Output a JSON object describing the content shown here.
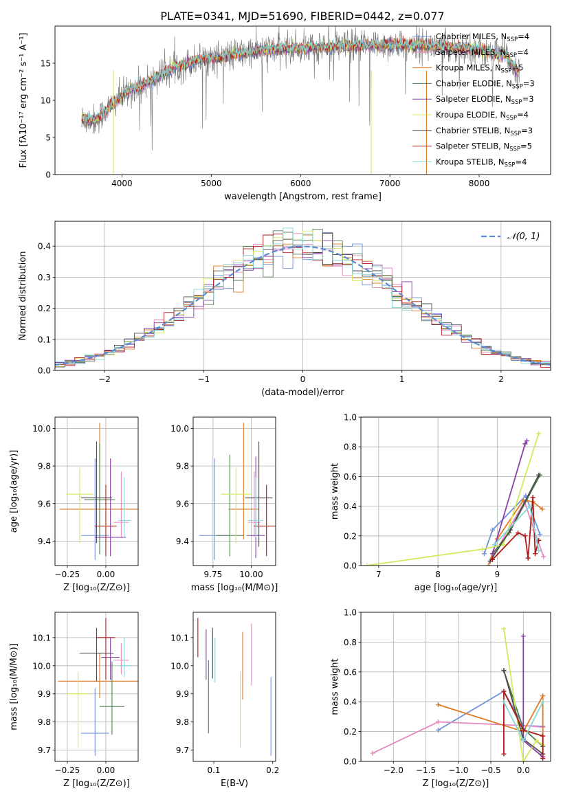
{
  "figure_title": "PLATE=0341, MJD=51690, FIBERID=0442, z=0.077",
  "series_colors": [
    "#6f93d9",
    "#e887c0",
    "#e07a24",
    "#4f7f4f",
    "#8b3fab",
    "#d4e85c",
    "#4d4d4d",
    "#b01818",
    "#86d6d6"
  ],
  "chart_data": [
    {
      "id": "spectrum",
      "type": "line",
      "title": "PLATE=0341, MJD=51690, FIBERID=0442, z=0.077",
      "xlabel": "wavelength [Angstrom, rest frame]",
      "ylabel": "Flux [fλ10⁻¹⁷ erg cm⁻² s⁻¹ A⁻¹]",
      "xlim": [
        3250,
        8800
      ],
      "ylim": [
        0,
        20
      ],
      "xticks": [
        4000,
        5000,
        6000,
        7000,
        8000
      ],
      "yticks": [
        0,
        5,
        10,
        15
      ],
      "grid": false,
      "legend_position": "right",
      "data_trend": {
        "x": [
          3550,
          3700,
          3900,
          4100,
          4300,
          4600,
          4900,
          5200,
          5600,
          6000,
          6500,
          7000,
          7400,
          7900,
          8300,
          8450
        ],
        "y": [
          7.5,
          7.3,
          9.5,
          11.5,
          12.5,
          14.5,
          15.6,
          16.0,
          16.8,
          17.0,
          17.3,
          17.5,
          17.4,
          17.0,
          16.0,
          13.5
        ]
      },
      "legend": [
        {
          "label": "Chabrier MILES, N",
          "sub": "SSP",
          "suffix": "=4"
        },
        {
          "label": "Salpeter MILES, N",
          "sub": "SSP",
          "suffix": "=4"
        },
        {
          "label": "Kroupa MILES, N",
          "sub": "SSP",
          "suffix": "=5"
        },
        {
          "label": "Chabrier ELODIE, N",
          "sub": "SSP",
          "suffix": "=3"
        },
        {
          "label": "Salpeter ELODIE, N",
          "sub": "SSP",
          "suffix": "=3"
        },
        {
          "label": "Kroupa ELODIE, N",
          "sub": "SSP",
          "suffix": "=4"
        },
        {
          "label": "Chabrier STELIB, N",
          "sub": "SSP",
          "suffix": "=3"
        },
        {
          "label": "Salpeter STELIB, N",
          "sub": "SSP",
          "suffix": "=5"
        },
        {
          "label": "Kroupa STELIB, N",
          "sub": "SSP",
          "suffix": "=4"
        }
      ]
    },
    {
      "id": "residuals",
      "type": "line",
      "xlabel": "(data-model)/error",
      "ylabel": "Normed distribution",
      "xlim": [
        -2.5,
        2.5
      ],
      "ylim": [
        0,
        0.48
      ],
      "xticks": [
        -2,
        -1,
        0,
        1,
        2
      ],
      "yticks": [
        0.0,
        0.1,
        0.2,
        0.3,
        0.4
      ],
      "grid": true,
      "legend_position": "top-right",
      "legend": [
        "𝒩(0, 1)"
      ],
      "gaussian": {
        "mean": 0,
        "sigma": 1
      },
      "hist_bin_width": 0.1
    },
    {
      "id": "age_vs_Z",
      "type": "scatter",
      "xlabel": "Z [log₁₀(Z/Z⊙)]",
      "ylabel": "age  [log₁₀(age/yr)]",
      "xlim": [
        -0.33,
        0.21
      ],
      "ylim": [
        9.27,
        10.06
      ],
      "xticks": [
        -0.25,
        0.0
      ],
      "yticks": [
        9.4,
        9.6,
        9.8,
        10.0
      ],
      "grid": true,
      "points": [
        {
          "x": -0.07,
          "xerr": 0.09,
          "y": 9.43,
          "yerr": [
            0.13,
            0.41
          ]
        },
        {
          "x": 0.1,
          "xerr": 0.05,
          "y": 9.5,
          "yerr": [
            0.08,
            0.27
          ]
        },
        {
          "x": -0.04,
          "xerr": 0.26,
          "y": 9.57,
          "yerr": [
            0.16,
            0.46
          ]
        },
        {
          "x": -0.04,
          "xerr": 0.1,
          "y": 9.62,
          "yerr": [
            0.29,
            0.3
          ]
        },
        {
          "x": 0.03,
          "xerr": 0.1,
          "y": 9.42,
          "yerr": [
            0.1,
            0.42
          ]
        },
        {
          "x": -0.17,
          "xerr": 0.09,
          "y": 9.65,
          "yerr": [
            0.26,
            0.14
          ]
        },
        {
          "x": -0.06,
          "xerr": 0.1,
          "y": 9.63,
          "yerr": [
            0.24,
            0.3
          ]
        },
        {
          "x": 0.0,
          "xerr": 0.07,
          "y": 9.48,
          "yerr": [
            0.16,
            0.22
          ]
        },
        {
          "x": 0.12,
          "xerr": 0.04,
          "y": 9.51,
          "yerr": [
            0.09,
            0.23
          ]
        }
      ]
    },
    {
      "id": "age_vs_mass",
      "type": "scatter",
      "xlabel": "mass [log₁₀(M/M⊙)]",
      "ylabel": "",
      "xlim": [
        9.62,
        10.16
      ],
      "ylim": [
        9.27,
        10.06
      ],
      "xticks": [
        9.75,
        10.0
      ],
      "yticks": [
        9.4,
        9.6,
        9.8,
        10.0
      ],
      "grid": true,
      "points": [
        {
          "x": 9.76,
          "xerr": 0.1,
          "y": 9.43,
          "yerr": [
            0.13,
            0.41
          ]
        },
        {
          "x": 10.02,
          "xerr": 0.04,
          "y": 9.5,
          "yerr": [
            0.08,
            0.27
          ]
        },
        {
          "x": 9.95,
          "xerr": 0.1,
          "y": 9.57,
          "yerr": [
            0.16,
            0.46
          ]
        },
        {
          "x": 9.86,
          "xerr": 0.09,
          "y": 9.43,
          "yerr": [
            0.11,
            0.43
          ]
        },
        {
          "x": 10.03,
          "xerr": 0.06,
          "y": 9.43,
          "yerr": [
            0.12,
            0.42
          ]
        },
        {
          "x": 9.9,
          "xerr": 0.1,
          "y": 9.65,
          "yerr": [
            0.26,
            0.14
          ]
        },
        {
          "x": 10.05,
          "xerr": 0.09,
          "y": 9.63,
          "yerr": [
            0.26,
            0.3
          ]
        },
        {
          "x": 10.1,
          "xerr": 0.08,
          "y": 9.48,
          "yerr": [
            0.16,
            0.22
          ]
        },
        {
          "x": 10.03,
          "xerr": 0.05,
          "y": 9.51,
          "yerr": [
            0.09,
            0.23
          ]
        }
      ]
    },
    {
      "id": "weight_vs_age",
      "type": "line",
      "xlabel": "age  [log₁₀(age/yr)]",
      "ylabel": "mass weight",
      "xlim": [
        6.7,
        9.9
      ],
      "ylim": [
        0,
        1
      ],
      "xticks": [
        7,
        8,
        9
      ],
      "yticks": [
        0.0,
        0.2,
        0.4,
        0.6,
        0.8,
        1.0
      ],
      "grid": true,
      "series": [
        {
          "x": [
            8.78,
            8.92,
            9.48,
            9.72
          ],
          "y": [
            0.08,
            0.24,
            0.47,
            0.21
          ]
        },
        {
          "x": [
            8.88,
            9.46,
            9.62,
            9.78
          ],
          "y": [
            0.03,
            0.43,
            0.24,
            0.06
          ]
        },
        {
          "x": [
            8.85,
            9.0,
            9.44,
            9.6,
            9.76
          ],
          "y": [
            0.0,
            0.18,
            0.44,
            0.43,
            0.38
          ]
        },
        {
          "x": [
            8.92,
            9.2,
            9.72
          ],
          "y": [
            0.08,
            0.22,
            0.61
          ]
        },
        {
          "x": [
            8.92,
            9.47,
            9.5
          ],
          "y": [
            0.08,
            0.82,
            0.84
          ]
        },
        {
          "x": [
            6.8,
            8.75,
            9.1,
            9.7
          ],
          "y": [
            0.0,
            0.11,
            0.14,
            0.89
          ]
        },
        {
          "x": [
            8.88,
            9.22,
            9.7
          ],
          "y": [
            0.03,
            0.24,
            0.61
          ]
        },
        {
          "x": [
            8.92,
            9.35,
            9.47,
            9.52,
            9.6,
            9.64,
            9.7
          ],
          "y": [
            0.04,
            0.22,
            0.2,
            0.05,
            0.46,
            0.08,
            0.17
          ]
        },
        {
          "x": [
            8.95,
            9.55,
            9.7
          ],
          "y": [
            0.14,
            0.4,
            0.1
          ]
        }
      ]
    },
    {
      "id": "mass_vs_Z",
      "type": "scatter",
      "xlabel": "Z [log₁₀(Z/Z⊙)]",
      "ylabel": "mass [log₁₀(M/M⊙)]",
      "xlim": [
        -0.33,
        0.21
      ],
      "ylim": [
        9.66,
        10.19
      ],
      "xticks": [
        -0.25,
        0.0
      ],
      "yticks": [
        9.7,
        9.8,
        9.9,
        10.0,
        10.1
      ],
      "grid": true,
      "points": [
        {
          "x": -0.07,
          "xerr": 0.09,
          "y": 9.76,
          "yerr": [
            0.08,
            0.16
          ]
        },
        {
          "x": 0.1,
          "xerr": 0.05,
          "y": 10.02,
          "yerr": [
            0.05,
            0.06
          ]
        },
        {
          "x": -0.04,
          "xerr": 0.27,
          "y": 9.945,
          "yerr": [
            0.06,
            0.1
          ]
        },
        {
          "x": 0.04,
          "xerr": 0.08,
          "y": 9.855,
          "yerr": [
            0.1,
            0.16
          ]
        },
        {
          "x": 0.03,
          "xerr": 0.06,
          "y": 10.03,
          "yerr": [
            0.08,
            0.07
          ]
        },
        {
          "x": -0.18,
          "xerr": 0.07,
          "y": 9.9,
          "yerr": [
            0.19,
            0.08
          ]
        },
        {
          "x": -0.06,
          "xerr": 0.11,
          "y": 10.045,
          "yerr": [
            0.1,
            0.09
          ]
        },
        {
          "x": 0.0,
          "xerr": 0.06,
          "y": 10.1,
          "yerr": [
            0.15,
            0.07
          ]
        },
        {
          "x": 0.12,
          "xerr": 0.04,
          "y": 10.0,
          "yerr": [
            0.04,
            0.1
          ]
        }
      ]
    },
    {
      "id": "mass_vs_EBV",
      "type": "scatter",
      "xlabel": "E(B-V)",
      "ylabel": "",
      "xlim": [
        0.065,
        0.205
      ],
      "ylim": [
        9.66,
        10.19
      ],
      "xticks": [
        0.1,
        0.2
      ],
      "yticks": [
        9.7,
        9.8,
        9.9,
        10.0,
        10.1
      ],
      "grid": false,
      "points": [
        {
          "x": 0.197,
          "y": 9.82,
          "yerr": [
            0.14,
            0.14
          ]
        },
        {
          "x": 0.164,
          "y": 10.03,
          "yerr": [
            0.1,
            0.12
          ]
        },
        {
          "x": 0.149,
          "y": 10.0,
          "yerr": [
            0.12,
            0.12
          ]
        },
        {
          "x": 0.091,
          "y": 9.86,
          "yerr": [
            0.1,
            0.16
          ]
        },
        {
          "x": 0.087,
          "y": 10.04,
          "yerr": [
            0.09,
            0.09
          ]
        },
        {
          "x": 0.145,
          "y": 9.845,
          "yerr": [
            0.135,
            0.135
          ]
        },
        {
          "x": 0.098,
          "y": 10.045,
          "yerr": [
            0.09,
            0.09
          ]
        },
        {
          "x": 0.073,
          "y": 10.1,
          "yerr": [
            0.07,
            0.07
          ]
        },
        {
          "x": 0.102,
          "y": 10.02,
          "yerr": [
            0.08,
            0.08
          ]
        }
      ]
    },
    {
      "id": "weight_vs_Z",
      "type": "line",
      "xlabel": "Z [log₁₀(Z/Z⊙)]",
      "ylabel": "mass weight",
      "xlim": [
        -2.5,
        0.42
      ],
      "ylim": [
        0,
        1
      ],
      "xticks": [
        -2.0,
        -1.5,
        -1.0,
        -0.5,
        0.0
      ],
      "yticks": [
        0.0,
        0.2,
        0.4,
        0.6,
        0.8,
        1.0
      ],
      "grid": true,
      "series": [
        {
          "x": [
            -1.31,
            -0.3,
            0.0,
            0.3
          ],
          "y": [
            0.21,
            0.47,
            0.24,
            0.235
          ]
        },
        {
          "x": [
            -2.32,
            -1.31,
            0.0,
            0.3
          ],
          "y": [
            0.055,
            0.265,
            0.24,
            0.23
          ]
        },
        {
          "x": [
            -1.31,
            0.0,
            0.3,
            0.3
          ],
          "y": [
            0.38,
            0.2,
            0.44,
            0.05
          ]
        },
        {
          "x": [
            -0.3,
            0.0,
            0.3
          ],
          "y": [
            0.61,
            0.22,
            0.1
          ]
        },
        {
          "x": [
            0.0,
            0.0,
            0.3
          ],
          "y": [
            0.84,
            0.14,
            0.03
          ]
        },
        {
          "x": [
            -0.3,
            0.0,
            0.2,
            0.3
          ],
          "y": [
            0.89,
            0.0,
            0.14,
            0.11
          ]
        },
        {
          "x": [
            -0.3,
            0.0,
            0.3
          ],
          "y": [
            0.61,
            0.15,
            0.05
          ]
        },
        {
          "x": [
            -0.3,
            -0.3,
            0.0,
            0.3,
            0.3
          ],
          "y": [
            0.05,
            0.47,
            0.21,
            0.17,
            0.02
          ]
        },
        {
          "x": [
            -0.3,
            0.0,
            0.3
          ],
          "y": [
            0.4,
            0.14,
            0.4
          ]
        }
      ]
    }
  ]
}
